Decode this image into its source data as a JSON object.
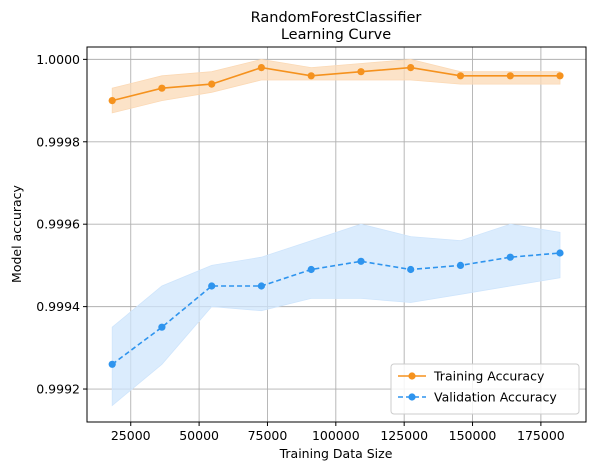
{
  "chart_data": {
    "type": "line",
    "title": "RandomForestClassifier",
    "subtitle": "Learning Curve",
    "xlabel": "Training Data Size",
    "ylabel": "Model accuracy",
    "xlim": [
      9000,
      191500
    ],
    "ylim": [
      0.99912,
      1.00003
    ],
    "grid": true,
    "legend_position": "lower-right",
    "x_ticks": [
      25000,
      50000,
      75000,
      100000,
      125000,
      150000,
      175000
    ],
    "x_tick_labels": [
      "25000",
      "50000",
      "75000",
      "100000",
      "125000",
      "150000",
      "175000"
    ],
    "y_ticks": [
      0.9992,
      0.9994,
      0.9996,
      0.9998,
      1.0
    ],
    "y_tick_labels": [
      "0.9992",
      "0.9994",
      "0.9996",
      "0.9998",
      "1.0000"
    ],
    "x": [
      18200,
      36400,
      54600,
      72800,
      91000,
      109200,
      127400,
      145600,
      163800,
      182000
    ],
    "series": [
      {
        "name": "Training Accuracy",
        "color": "#f5921e",
        "band_color": "#fbd9b5",
        "line_style": "solid",
        "values": [
          0.9999,
          0.99993,
          0.99994,
          0.99998,
          0.99996,
          0.99997,
          0.99998,
          0.99996,
          0.99996,
          0.99996
        ],
        "upper": [
          0.99993,
          0.99996,
          0.99997,
          1.0,
          0.99998,
          0.99999,
          1.0,
          0.99997,
          0.99997,
          0.99997
        ],
        "lower": [
          0.99987,
          0.9999,
          0.99992,
          0.99995,
          0.99995,
          0.99995,
          0.99995,
          0.99994,
          0.99994,
          0.99994
        ]
      },
      {
        "name": "Validation Accuracy",
        "color": "#2e94ee",
        "band_color": "#cfe5fc",
        "line_style": "dashed",
        "values": [
          0.99926,
          0.99935,
          0.99945,
          0.99945,
          0.99949,
          0.99951,
          0.99949,
          0.9995,
          0.99952,
          0.99953
        ],
        "upper": [
          0.99935,
          0.99945,
          0.9995,
          0.99952,
          0.99956,
          0.9996,
          0.99957,
          0.99956,
          0.9996,
          0.99958
        ],
        "lower": [
          0.99916,
          0.99926,
          0.9994,
          0.99939,
          0.99942,
          0.99942,
          0.99941,
          0.99943,
          0.99945,
          0.99947
        ]
      }
    ]
  }
}
